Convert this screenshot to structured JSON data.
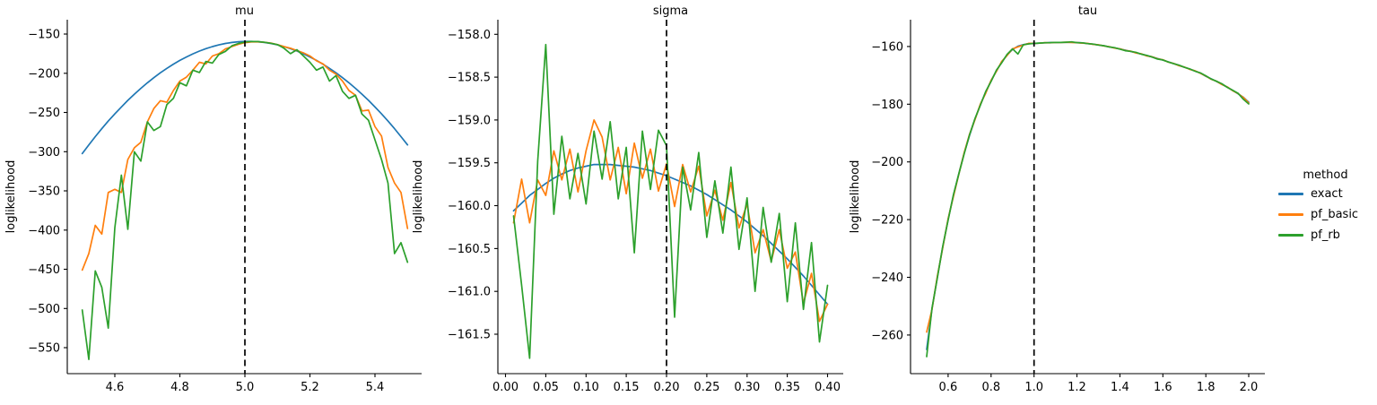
{
  "figure": {
    "background": "#ffffff"
  },
  "legend": {
    "title": "method",
    "position": "right",
    "entries": [
      {
        "label": "exact",
        "color": "#1f77b4"
      },
      {
        "label": "pf_basic",
        "color": "#ff7f0e"
      },
      {
        "label": "pf_rb",
        "color": "#2ca02c"
      }
    ]
  },
  "chart_data": [
    {
      "type": "line",
      "title": "mu",
      "ylabel": "loglikelihood",
      "vline": 5.0,
      "grid": false,
      "xlim": [
        4.4538,
        5.5434
      ],
      "ylim": [
        -583.1,
        -131.7
      ],
      "x_ticks": [
        4.6,
        4.8,
        5.0,
        5.2,
        5.4
      ],
      "x_tick_labels": [
        "4.6",
        "4.8",
        "5.0",
        "5.2",
        "5.4"
      ],
      "y_ticks": [
        -150,
        -200,
        -250,
        -300,
        -350,
        -400,
        -450,
        -500,
        -550
      ],
      "y_tick_labels": [
        "−150",
        "−200",
        "−250",
        "−300",
        "−350",
        "−400",
        "−450",
        "−500",
        "−550"
      ],
      "x": [
        4.5,
        4.52,
        4.54,
        4.56,
        4.58,
        4.6,
        4.62,
        4.64,
        4.66,
        4.68,
        4.7,
        4.72,
        4.74,
        4.76,
        4.78,
        4.8,
        4.82,
        4.84,
        4.86,
        4.88,
        4.9,
        4.92,
        4.94,
        4.96,
        4.98,
        5.0,
        5.02,
        5.04,
        5.06,
        5.08,
        5.1,
        5.12,
        5.14,
        5.16,
        5.18,
        5.2,
        5.22,
        5.24,
        5.26,
        5.28,
        5.3,
        5.32,
        5.34,
        5.36,
        5.38,
        5.4,
        5.42,
        5.44,
        5.46,
        5.48,
        5.5
      ],
      "series": [
        {
          "name": "exact",
          "color": "#1f77b4",
          "values": [
            -302.4,
            -291.4,
            -280.8,
            -270.7,
            -261,
            -251.8,
            -243,
            -234.6,
            -226.7,
            -219.2,
            -212.2,
            -205.6,
            -199.4,
            -193.7,
            -188.4,
            -183.6,
            -179.2,
            -175.2,
            -171.7,
            -168.6,
            -166,
            -163.8,
            -162,
            -160.7,
            -159.8,
            -159.4,
            -159.4,
            -159.8,
            -160.7,
            -162,
            -163.8,
            -166,
            -168.6,
            -171.7,
            -175.2,
            -179.2,
            -183.6,
            -188.4,
            -193.7,
            -199.4,
            -205.6,
            -212.2,
            -219.2,
            -226.7,
            -234.6,
            -243,
            -251.8,
            -261,
            -270.7,
            -280.8,
            -291.4
          ]
        },
        {
          "name": "pf_basic",
          "color": "#ff7f0e",
          "values": [
            -451,
            -430,
            -394,
            -405,
            -352,
            -348,
            -352,
            -310,
            -295,
            -288,
            -262,
            -245,
            -235,
            -237,
            -222,
            -210,
            -205,
            -196,
            -186,
            -188,
            -178,
            -175,
            -169,
            -166,
            -163,
            -161,
            -160,
            -159.8,
            -160.5,
            -161.5,
            -163.5,
            -166,
            -168,
            -171,
            -174,
            -178,
            -184,
            -188,
            -196,
            -201,
            -210,
            -222,
            -228,
            -248,
            -247,
            -268,
            -280,
            -320,
            -340,
            -352,
            -398
          ]
        },
        {
          "name": "pf_rb",
          "color": "#2ca02c",
          "values": [
            -502,
            -565,
            -452,
            -473,
            -525,
            -397,
            -330,
            -399,
            -300,
            -312,
            -262,
            -273,
            -268,
            -240,
            -232,
            -212,
            -216,
            -196,
            -199,
            -185,
            -187,
            -176,
            -172,
            -165,
            -162,
            -160.2,
            -159.5,
            -159.6,
            -160.5,
            -161.8,
            -163.5,
            -168,
            -175,
            -170,
            -178,
            -186,
            -196,
            -192,
            -210,
            -203,
            -223,
            -232,
            -228,
            -252,
            -260,
            -285,
            -310,
            -340,
            -430,
            -416,
            -441
          ]
        }
      ]
    },
    {
      "type": "line",
      "title": "sigma",
      "ylabel": "loglikelihood",
      "vline": 0.2,
      "grid": false,
      "xlim": [
        -0.0095,
        0.4195
      ],
      "ylim": [
        -161.96,
        -157.83
      ],
      "x_ticks": [
        0.0,
        0.05,
        0.1,
        0.15,
        0.2,
        0.25,
        0.3,
        0.35,
        0.4
      ],
      "x_tick_labels": [
        "0.00",
        "0.05",
        "0.10",
        "0.15",
        "0.20",
        "0.25",
        "0.30",
        "0.35",
        "0.40"
      ],
      "y_ticks": [
        -158.0,
        -158.5,
        -159.0,
        -159.5,
        -160.0,
        -160.5,
        -161.0,
        -161.5
      ],
      "y_tick_labels": [
        "−158.0",
        "−158.5",
        "−159.0",
        "−159.5",
        "−160.0",
        "−160.5",
        "−161.0",
        "−161.5"
      ],
      "x": [
        0.01,
        0.02,
        0.03,
        0.04,
        0.05,
        0.06,
        0.07,
        0.08,
        0.09,
        0.1,
        0.11,
        0.12,
        0.13,
        0.14,
        0.15,
        0.16,
        0.17,
        0.18,
        0.19,
        0.2,
        0.21,
        0.22,
        0.23,
        0.24,
        0.25,
        0.26,
        0.27,
        0.28,
        0.29,
        0.3,
        0.31,
        0.32,
        0.33,
        0.34,
        0.35,
        0.36,
        0.37,
        0.38,
        0.39,
        0.4
      ],
      "series": [
        {
          "name": "exact",
          "color": "#1f77b4",
          "values": [
            -160.06,
            -159.97,
            -159.88,
            -159.81,
            -159.74,
            -159.68,
            -159.63,
            -159.59,
            -159.56,
            -159.54,
            -159.52,
            -159.52,
            -159.52,
            -159.53,
            -159.54,
            -159.55,
            -159.57,
            -159.59,
            -159.62,
            -159.65,
            -159.69,
            -159.73,
            -159.77,
            -159.82,
            -159.87,
            -159.93,
            -159.99,
            -160.05,
            -160.12,
            -160.19,
            -160.27,
            -160.35,
            -160.44,
            -160.53,
            -160.62,
            -160.72,
            -160.82,
            -160.93,
            -161.04,
            -161.15
          ]
        },
        {
          "name": "pf_basic",
          "color": "#ff7f0e",
          "values": [
            -160.2,
            -159.69,
            -160.2,
            -159.7,
            -159.88,
            -159.36,
            -159.7,
            -159.34,
            -159.84,
            -159.36,
            -159.0,
            -159.2,
            -159.7,
            -159.32,
            -159.86,
            -159.27,
            -159.68,
            -159.34,
            -159.83,
            -159.51,
            -160.01,
            -159.52,
            -159.84,
            -159.54,
            -160.12,
            -159.82,
            -160.17,
            -159.73,
            -160.26,
            -159.98,
            -160.55,
            -160.28,
            -160.65,
            -160.28,
            -160.73,
            -160.54,
            -161.14,
            -160.79,
            -161.35,
            -161.15
          ]
        },
        {
          "name": "pf_rb",
          "color": "#2ca02c",
          "values": [
            -160.12,
            -160.93,
            -161.78,
            -159.48,
            -158.12,
            -160.1,
            -159.19,
            -159.92,
            -159.39,
            -159.98,
            -159.13,
            -159.69,
            -159.02,
            -159.92,
            -159.32,
            -160.55,
            -159.13,
            -159.81,
            -159.12,
            -159.3,
            -161.3,
            -159.55,
            -160.05,
            -159.38,
            -160.37,
            -159.71,
            -160.32,
            -159.55,
            -160.51,
            -159.91,
            -161.0,
            -160.02,
            -160.66,
            -160.09,
            -161.12,
            -160.2,
            -161.21,
            -160.43,
            -161.59,
            -160.93
          ]
        }
      ]
    },
    {
      "type": "line",
      "title": "tau",
      "ylabel": "loglikelihood",
      "vline": 1.0,
      "grid": false,
      "xlim": [
        0.425,
        2.075
      ],
      "ylim": [
        -273.4,
        -150.7
      ],
      "x_ticks": [
        0.6,
        0.8,
        1.0,
        1.2,
        1.4,
        1.6,
        1.8,
        2.0
      ],
      "x_tick_labels": [
        "0.6",
        "0.8",
        "1.0",
        "1.2",
        "1.4",
        "1.6",
        "1.8",
        "2.0"
      ],
      "y_ticks": [
        -160,
        -180,
        -200,
        -220,
        -240,
        -260
      ],
      "y_tick_labels": [
        "−160",
        "−180",
        "−200",
        "−220",
        "−240",
        "−260"
      ],
      "x": [
        0.5,
        0.525,
        0.55,
        0.575,
        0.6,
        0.625,
        0.65,
        0.675,
        0.7,
        0.725,
        0.75,
        0.775,
        0.8,
        0.825,
        0.85,
        0.875,
        0.9,
        0.925,
        0.95,
        0.975,
        1.0,
        1.025,
        1.05,
        1.075,
        1.1,
        1.125,
        1.15,
        1.175,
        1.2,
        1.225,
        1.25,
        1.275,
        1.3,
        1.325,
        1.35,
        1.375,
        1.4,
        1.425,
        1.45,
        1.475,
        1.5,
        1.525,
        1.55,
        1.575,
        1.6,
        1.625,
        1.65,
        1.675,
        1.7,
        1.725,
        1.75,
        1.775,
        1.8,
        1.825,
        1.85,
        1.875,
        1.9,
        1.925,
        1.95,
        1.975,
        2.0
      ],
      "series": [
        {
          "name": "exact",
          "color": "#1f77b4",
          "values": [
            -265,
            -251,
            -240,
            -229.5,
            -220,
            -211.5,
            -204,
            -197,
            -190.8,
            -185.2,
            -180.2,
            -175.8,
            -171.9,
            -168.4,
            -165.4,
            -162.9,
            -161,
            -159.9,
            -159.35,
            -159,
            -158.95,
            -158.8,
            -158.7,
            -158.62,
            -158.58,
            -158.55,
            -158.55,
            -158.57,
            -158.62,
            -158.75,
            -158.95,
            -159.2,
            -159.45,
            -159.75,
            -160.1,
            -160.45,
            -160.85,
            -161.25,
            -161.7,
            -162.15,
            -162.6,
            -163.1,
            -163.6,
            -164.15,
            -164.7,
            -165.3,
            -165.9,
            -166.5,
            -167.15,
            -167.8,
            -168.5,
            -169.2,
            -170.3,
            -171.2,
            -172.1,
            -173.1,
            -174.1,
            -175.2,
            -176.4,
            -177.6,
            -179.3
          ]
        },
        {
          "name": "pf_basic",
          "color": "#ff7f0e",
          "values": [
            -259,
            -251.2,
            -239.6,
            -229.8,
            -219.7,
            -211.9,
            -204.2,
            -196.8,
            -190.4,
            -185.4,
            -180,
            -176.2,
            -171.7,
            -168.6,
            -165.1,
            -163.1,
            -160.8,
            -160.1,
            -159.5,
            -158.9,
            -158.9,
            -158.85,
            -158.65,
            -158.7,
            -158.55,
            -158.6,
            -158.5,
            -158.6,
            -158.65,
            -158.8,
            -158.9,
            -159.25,
            -159.4,
            -159.8,
            -160.05,
            -160.55,
            -160.8,
            -161.35,
            -161.6,
            -162.25,
            -162.55,
            -163.25,
            -163.55,
            -164.25,
            -164.6,
            -165.4,
            -165.85,
            -166.65,
            -167.1,
            -167.9,
            -168.4,
            -169.3,
            -170.2,
            -171.35,
            -172,
            -173.2,
            -174,
            -175.3,
            -176.3,
            -177.7,
            -179.6
          ]
        },
        {
          "name": "pf_rb",
          "color": "#2ca02c",
          "values": [
            -267.5,
            -250.8,
            -240.2,
            -229.3,
            -220.2,
            -211.3,
            -204.1,
            -197.2,
            -190.6,
            -185,
            -180.4,
            -175.6,
            -172.1,
            -168.2,
            -165.6,
            -162.7,
            -160.8,
            -162.6,
            -159.4,
            -159.1,
            -158.9,
            -158.82,
            -158.68,
            -158.65,
            -158.55,
            -158.58,
            -158.5,
            -158.38,
            -158.65,
            -158.7,
            -159,
            -159.15,
            -159.5,
            -159.7,
            -160.15,
            -160.4,
            -160.9,
            -161.45,
            -161.65,
            -162,
            -162.65,
            -163.05,
            -163.65,
            -164.35,
            -164.65,
            -165.35,
            -165.95,
            -166.45,
            -167.2,
            -167.75,
            -168.55,
            -169.15,
            -170.15,
            -171.25,
            -172.05,
            -172.9,
            -174.15,
            -175.15,
            -176.2,
            -178.3,
            -179.9
          ]
        }
      ]
    }
  ]
}
